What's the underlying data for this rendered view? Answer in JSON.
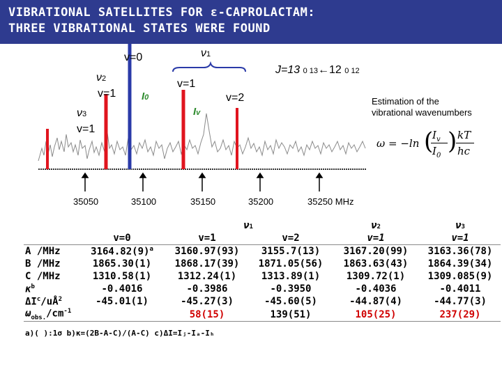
{
  "title": {
    "line1": "VIBRATIONAL SATELLITES FOR ε-CAPROLACTAM:",
    "line2": "THREE VIBRATIONAL STATES WERE FOUND"
  },
  "spectrum": {
    "v0": "v=0",
    "nu1": "ν",
    "nu1_sub": "1",
    "nu2": "ν",
    "nu2_sub": "2",
    "nu2_state": "v=1",
    "nu3": "ν",
    "nu3_sub": "3",
    "nu3_state": "v=1",
    "nu1_v1": "v=1",
    "nu1_v2": "v=2",
    "i0": "I",
    "i0_sub": "0",
    "iv": "I",
    "iv_sub": "v",
    "transition": "J=13",
    "transition_sub1": "0 13",
    "transition_arrow": "←12",
    "transition_sub2": "0 12",
    "freq_labels": [
      "35050",
      "35100",
      "35150",
      "35200",
      "35250 MHz"
    ],
    "note_line1": "Estimation of the",
    "note_line2": "vibrational wavenumbers",
    "formula_omega": "ω = −ln",
    "formula_frac_num": "I",
    "formula_frac_num_sub": "v",
    "formula_frac_den": "I",
    "formula_frac_den_sub": "0",
    "formula_k_num": "kT",
    "formula_k_den": "hc",
    "colors": {
      "accent_blue": "#2e3b8f",
      "line_red": "#e0141e",
      "line_blue": "#2a3aa8",
      "green": "#2e8b2e"
    }
  },
  "table": {
    "group_nu1": "ν",
    "group_nu1_sub": "1",
    "group_nu2": "ν",
    "group_nu2_sub": "2",
    "group_nu3": "ν",
    "group_nu3_sub": "3",
    "col_headers": [
      "v=0",
      "v=1",
      "v=2",
      "v=1",
      "v=1"
    ],
    "rows": [
      {
        "label": "A /MHz",
        "values": [
          "3164.82(9)",
          "3160.97(93)",
          "3155.7(13)",
          "3167.20(99)",
          "3163.36(78)"
        ]
      },
      {
        "label": "B /MHz",
        "values": [
          "1865.30(1)",
          "1868.17(39)",
          "1871.05(56)",
          "1863.63(43)",
          "1864.39(34)"
        ]
      },
      {
        "label": "C /MHz",
        "values": [
          "1310.58(1)",
          "1312.24(1)",
          "1313.89(1)",
          "1309.72(1)",
          "1309.085(9)"
        ]
      },
      {
        "label": "κ",
        "values": [
          "-0.4016",
          "-0.3986",
          "-0.3950",
          "-0.4036",
          "-0.4011"
        ]
      },
      {
        "label": "ΔI",
        "values": [
          "-45.01(1)",
          "-45.27(3)",
          "-45.60(5)",
          "-44.87(4)",
          "-44.77(3)"
        ]
      },
      {
        "label": "ω",
        "values": [
          "",
          "58(15)",
          "139(51)",
          "105(25)",
          "237(29)"
        ]
      }
    ],
    "sup_a": "a",
    "sup_b": "b",
    "sup_c": "c",
    "unit_delta": "/uÅ",
    "unit_delta_sup": "2",
    "omega_sub": "obs.",
    "omega_unit": "/cm",
    "omega_unit_sup": "-1",
    "footnote": "a)( ):1σ  b)κ=(2B-A-C)/(A-C)  c)ΔI=Iⱼ-Iₐ-Iₕ"
  }
}
